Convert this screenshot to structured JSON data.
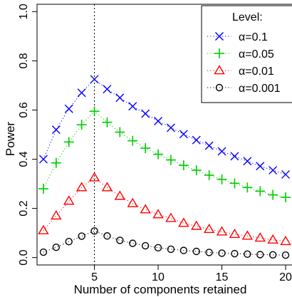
{
  "chart_data": {
    "type": "line",
    "xlabel": "Number of components retained",
    "ylabel": "Power",
    "xlim": [
      0.5,
      20.5
    ],
    "ylim": [
      -0.03,
      1.03
    ],
    "xticks": [
      5,
      10,
      15,
      20
    ],
    "yticks": [
      0.0,
      0.2,
      0.4,
      0.6,
      0.8,
      1.0
    ],
    "xtick_labels": [
      "5",
      "10",
      "15",
      "20"
    ],
    "ytick_labels": [
      "0.0",
      "0.2",
      "0.4",
      "0.6",
      "0.8",
      "1.0"
    ],
    "vline_x": 5,
    "grid": false,
    "legend": {
      "title": "Level:",
      "placement": "top-right"
    },
    "x": [
      1,
      2,
      3,
      4,
      5,
      6,
      7,
      8,
      9,
      10,
      11,
      12,
      13,
      14,
      15,
      16,
      17,
      18,
      19,
      20
    ],
    "series": [
      {
        "name": "α=0.1",
        "color": "#0000ff",
        "marker": "x",
        "values": [
          0.4,
          0.52,
          0.605,
          0.67,
          0.725,
          0.685,
          0.65,
          0.615,
          0.585,
          0.555,
          0.528,
          0.502,
          0.478,
          0.455,
          0.432,
          0.412,
          0.392,
          0.372,
          0.355,
          0.338
        ]
      },
      {
        "name": "α=0.05",
        "color": "#00cc00",
        "marker": "plus",
        "values": [
          0.28,
          0.385,
          0.47,
          0.54,
          0.595,
          0.55,
          0.51,
          0.475,
          0.445,
          0.42,
          0.397,
          0.375,
          0.355,
          0.335,
          0.318,
          0.302,
          0.285,
          0.27,
          0.255,
          0.245
        ]
      },
      {
        "name": "α=0.01",
        "color": "#ff0000",
        "marker": "triangle",
        "values": [
          0.11,
          0.17,
          0.23,
          0.285,
          0.325,
          0.285,
          0.25,
          0.22,
          0.195,
          0.175,
          0.16,
          0.14,
          0.128,
          0.115,
          0.105,
          0.095,
          0.088,
          0.08,
          0.072,
          0.066
        ]
      },
      {
        "name": "α=0.001",
        "color": "#000000",
        "marker": "circle",
        "values": [
          0.022,
          0.042,
          0.065,
          0.087,
          0.108,
          0.088,
          0.07,
          0.058,
          0.048,
          0.04,
          0.034,
          0.029,
          0.025,
          0.021,
          0.018,
          0.016,
          0.014,
          0.012,
          0.011,
          0.01
        ]
      }
    ]
  }
}
